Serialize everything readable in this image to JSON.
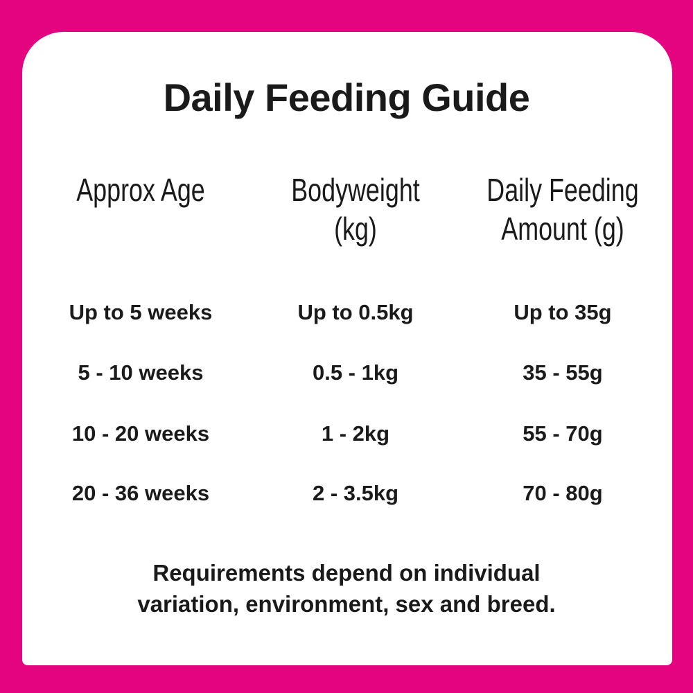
{
  "title": "Daily Feeding Guide",
  "headers": [
    "Approx Age",
    "Bodyweight (kg)",
    "Daily Feeding Amount (g)"
  ],
  "header_lines": [
    [
      "Approx Age"
    ],
    [
      "Bodyweight",
      "(kg)"
    ],
    [
      "Daily Feeding",
      "Amount (g)"
    ]
  ],
  "rows": [
    [
      "Up to 5 weeks",
      "Up to 0.5kg",
      "Up to 35g"
    ],
    [
      "5 - 10 weeks",
      "0.5 - 1kg",
      "35 - 55g"
    ],
    [
      "10 - 20 weeks",
      "1 - 2kg",
      "55 - 70g"
    ],
    [
      "20 - 36 weeks",
      "2 - 3.5kg",
      "70 - 80g"
    ]
  ],
  "footer": [
    "Requirements depend on individual",
    "variation, environment, sex and breed."
  ],
  "colors": {
    "border": "#e5047f",
    "background": "#ffffff",
    "text": "#1a1a1a"
  }
}
